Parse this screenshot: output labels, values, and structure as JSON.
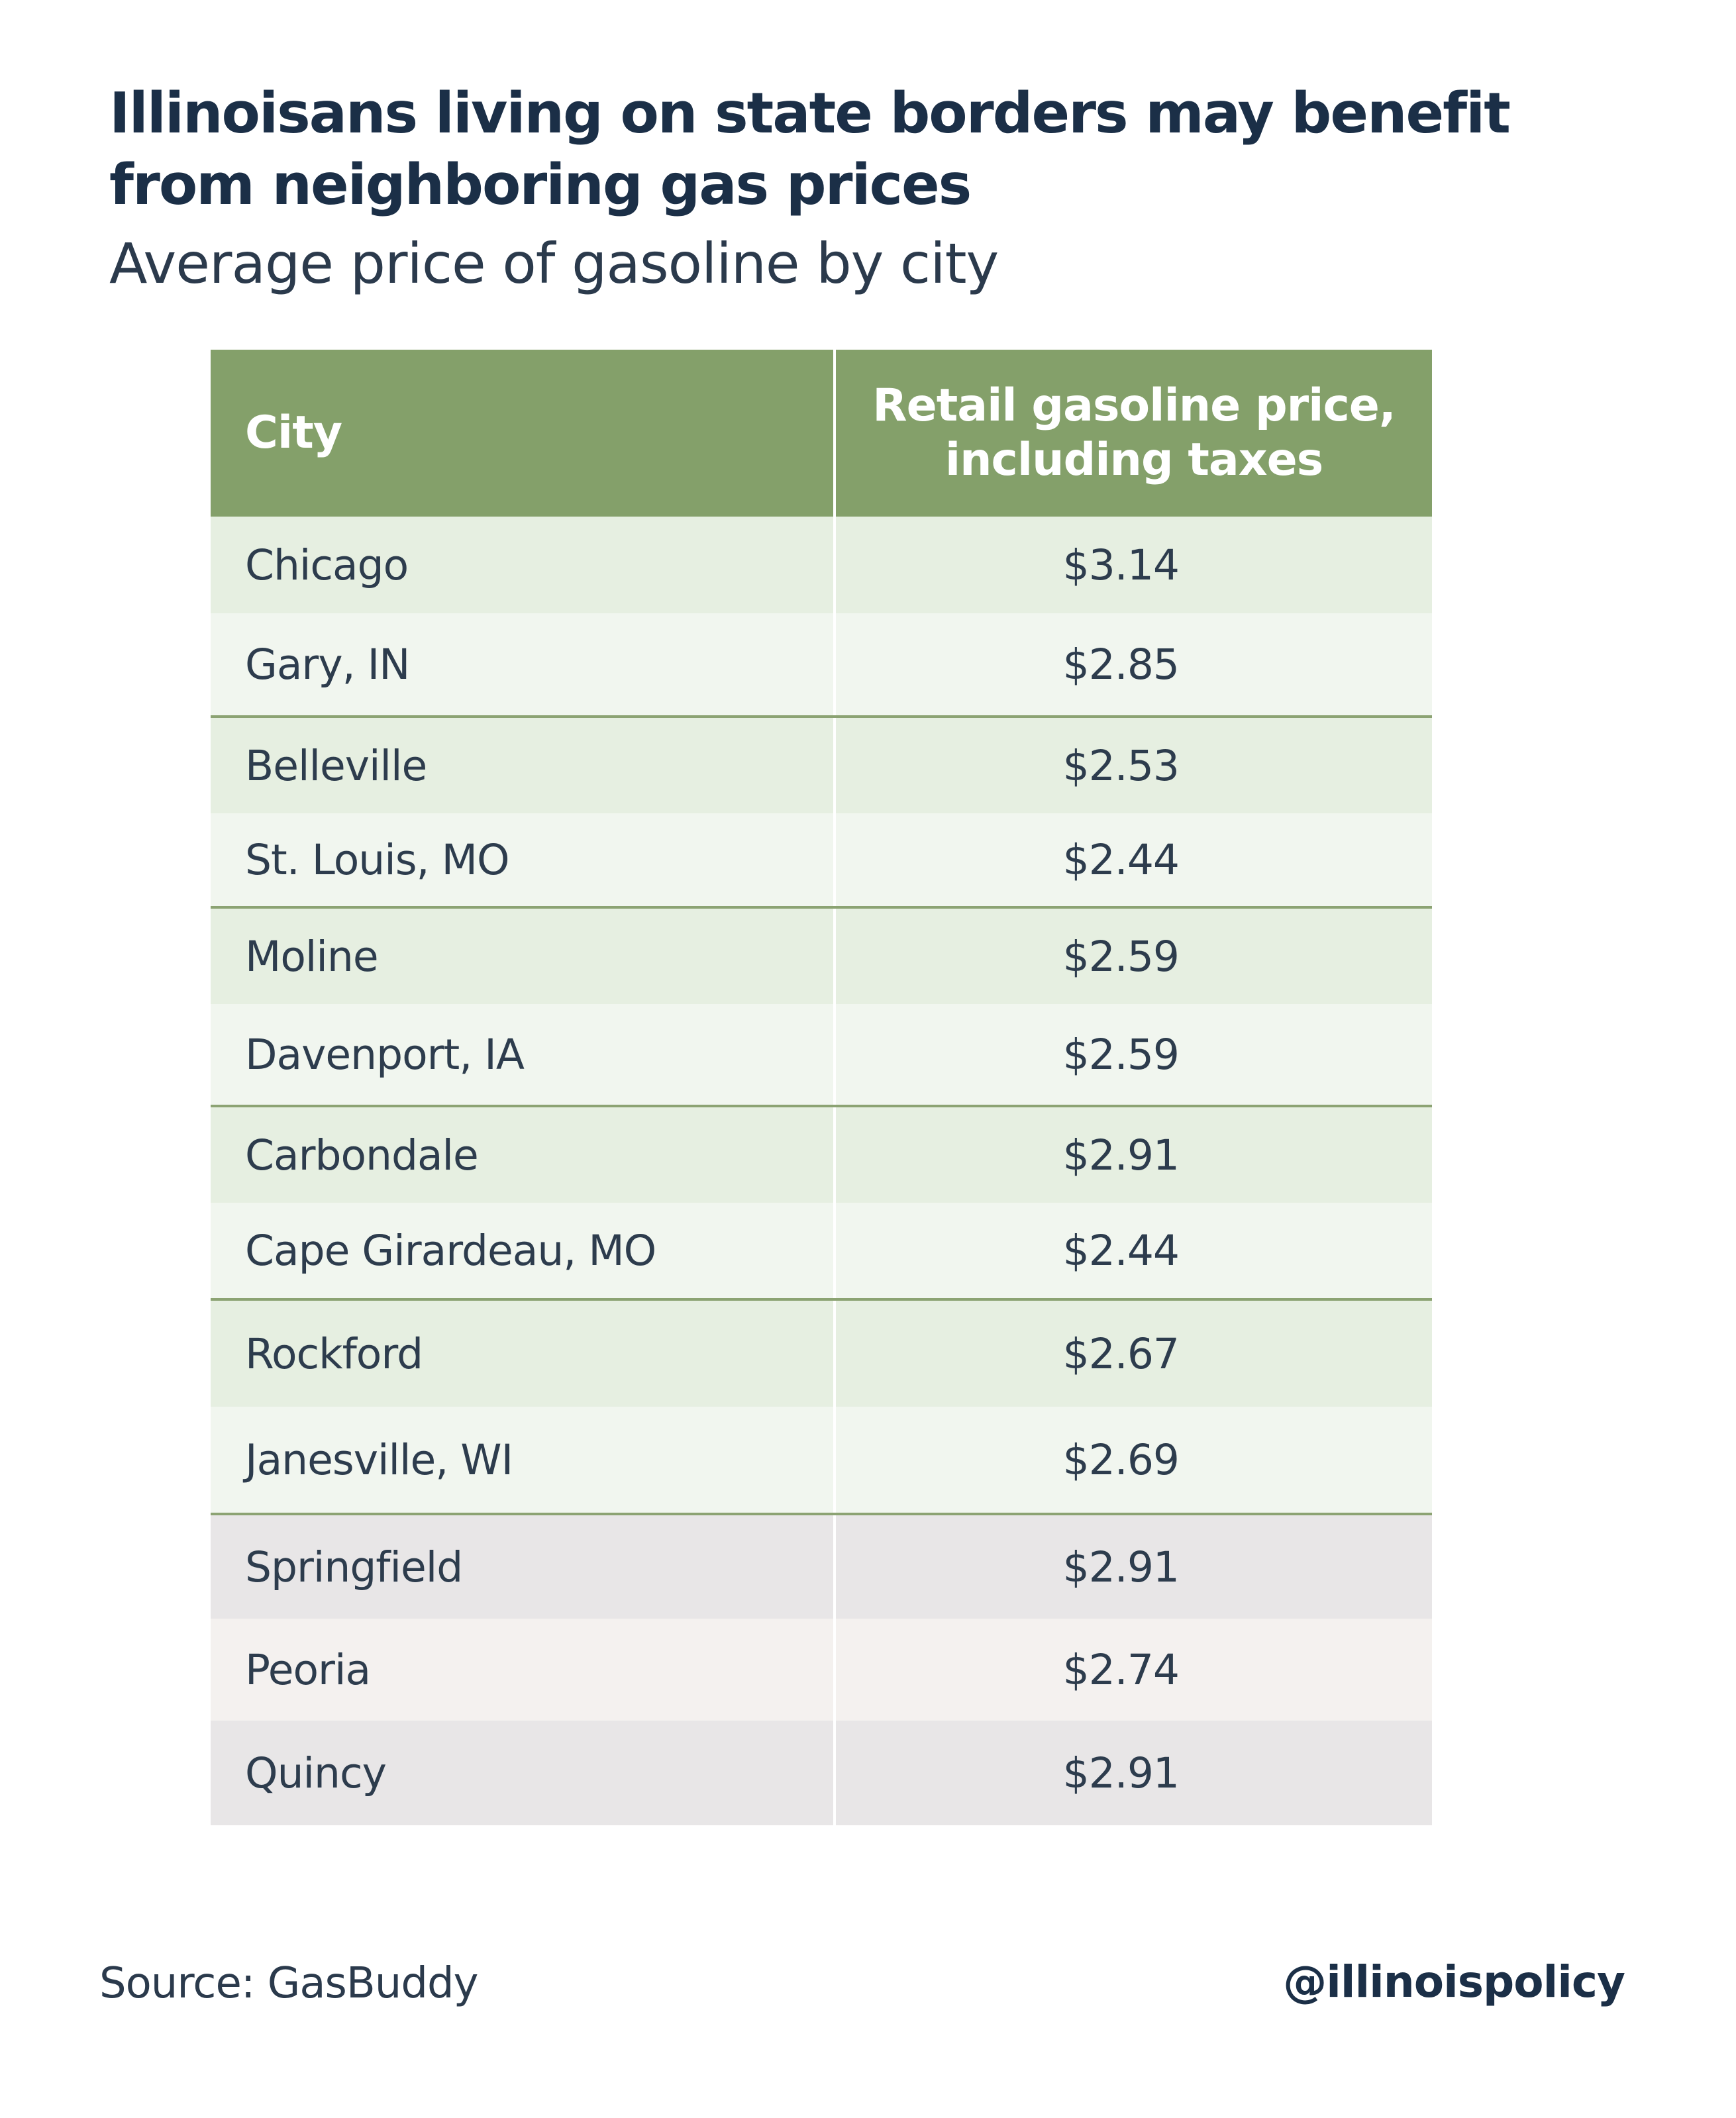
{
  "header": {
    "title": "Illinoisans living on state borders may benefit from neighboring gas prices",
    "subtitle": "Average price of gasoline by city"
  },
  "chart_data": {
    "type": "table",
    "title": "Illinoisans living on state borders may benefit from neighboring gas prices",
    "subtitle": "Average price of gasoline by city",
    "columns": [
      "City",
      "Retail gasoline price, including taxes"
    ],
    "rows": [
      {
        "city": "Chicago",
        "price": "$3.14",
        "value": 3.14
      },
      {
        "city": "Gary, IN",
        "price": "$2.85",
        "value": 2.85
      },
      {
        "city": "Belleville",
        "price": "$2.53",
        "value": 2.53
      },
      {
        "city": "St. Louis, MO",
        "price": "$2.44",
        "value": 2.44
      },
      {
        "city": "Moline",
        "price": "$2.59",
        "value": 2.59
      },
      {
        "city": "Davenport, IA",
        "price": "$2.59",
        "value": 2.59
      },
      {
        "city": "Carbondale",
        "price": "$2.91",
        "value": 2.91
      },
      {
        "city": "Cape Girardeau, MO",
        "price": "$2.44",
        "value": 2.44
      },
      {
        "city": "Rockford",
        "price": "$2.67",
        "value": 2.67
      },
      {
        "city": "Janesville, WI",
        "price": "$2.69",
        "value": 2.69
      },
      {
        "city": "Springfield",
        "price": "$2.91",
        "value": 2.91
      },
      {
        "city": "Peoria",
        "price": "$2.74",
        "value": 2.74
      },
      {
        "city": "Quincy",
        "price": "$2.91",
        "value": 2.91
      }
    ]
  },
  "colors": {
    "header_bg": "#84a06a",
    "green_row_dark": "#e6efe1",
    "green_row_light": "#f1f6ef",
    "gray_row_dark": "#e8e6e7",
    "gray_row_light": "#f4f1ef",
    "divider": "#8ca373",
    "title_text": "#1b2f47",
    "body_text": "#2d3c4d"
  },
  "footer": {
    "source": "Source: GasBuddy",
    "handle": "@illinoispolicy"
  }
}
